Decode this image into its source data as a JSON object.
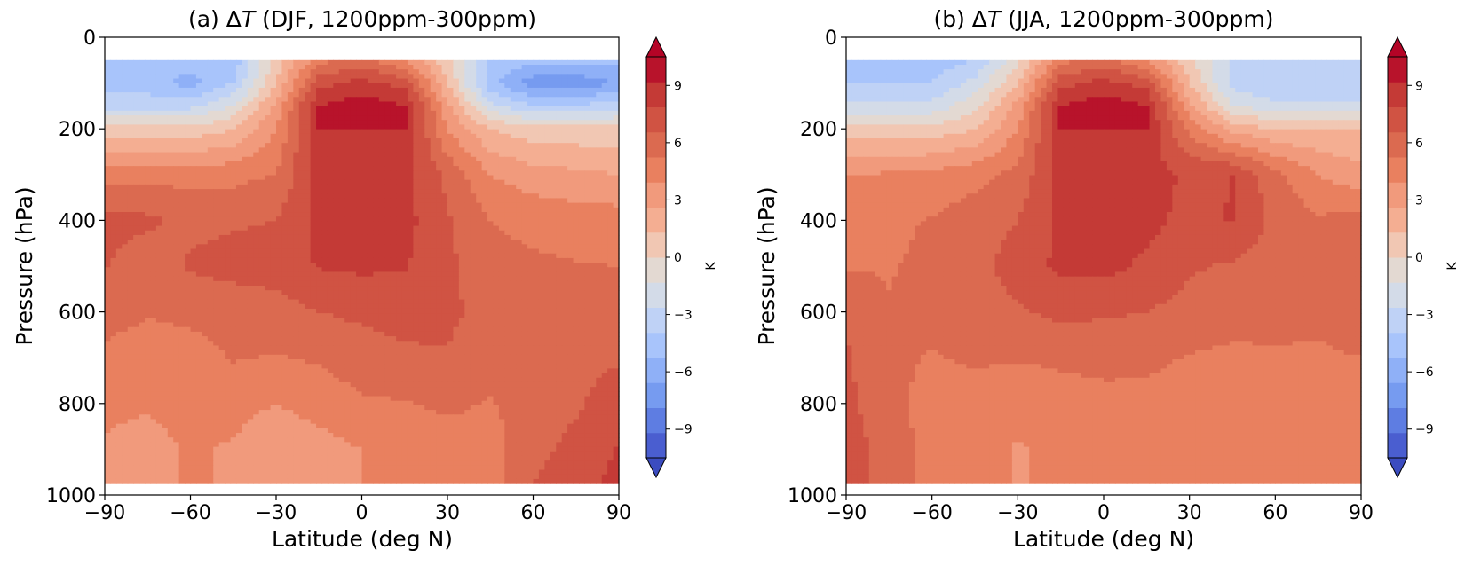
{
  "colors": {
    "cmap": [
      "#4a5ed0",
      "#5e7de2",
      "#769bf0",
      "#8fb0f7",
      "#a8c4fb",
      "#bfd2f6",
      "#d3dbe8",
      "#e3d9d2",
      "#f1c7b3",
      "#f4ae92",
      "#f19a7c",
      "#e9805f",
      "#db6a50",
      "#d05343",
      "#c43a36",
      "#b8132b"
    ],
    "under": "#3b4cc0",
    "over": "#b40426"
  },
  "chart_data": [
    {
      "type": "heatmap",
      "title_prefix": "(a) Δ",
      "title_var": "T",
      "title_suffix": " (DJF, 1200ppm-300ppm)",
      "xlabel": "Latitude (deg N)",
      "ylabel": "Pressure (hPa)",
      "xlim": [
        -90,
        90
      ],
      "ylim": [
        1000,
        0
      ],
      "y_inverted": true,
      "xticks": [
        -90,
        -60,
        -30,
        0,
        30,
        60,
        90
      ],
      "xtick_labels": [
        "−90",
        "−60",
        "−30",
        "0",
        "30",
        "60",
        "90"
      ],
      "yticks": [
        0,
        200,
        400,
        600,
        800,
        1000
      ],
      "ytick_labels": [
        "0",
        "200",
        "400",
        "600",
        "800",
        "1000"
      ],
      "colorbar": {
        "label": "K",
        "range": [
          -10.5,
          10.5
        ],
        "levels_step": 1.5,
        "ticks": [
          9,
          6,
          3,
          0,
          -3,
          -6,
          -9
        ],
        "tick_labels": [
          "9",
          "6",
          "3",
          "0",
          "−3",
          "−6",
          "−9"
        ],
        "extend": "both"
      },
      "profiles": {
        "lat": [
          -90,
          -75,
          -60,
          -45,
          -30,
          -15,
          0,
          15,
          30,
          45,
          60,
          75,
          90
        ],
        "p": [
          50,
          100,
          150,
          200,
          300,
          400,
          500,
          600,
          700,
          800,
          900,
          975
        ],
        "values": [
          [
            -4,
            -4,
            -4,
            -4,
            2,
            7,
            8,
            6,
            2,
            -3,
            -4,
            -4,
            -4
          ],
          [
            -4,
            -4,
            -5,
            -3,
            3,
            10,
            11,
            10,
            3,
            -4,
            -7,
            -7,
            -6
          ],
          [
            -2,
            -2,
            -2,
            0,
            5,
            12,
            13,
            12,
            5,
            -1,
            -3,
            -3,
            -2
          ],
          [
            2,
            2,
            2,
            3,
            6,
            12,
            12,
            12,
            6,
            3,
            2,
            2,
            2
          ],
          [
            6.8,
            7,
            7,
            7,
            7.6,
            11,
            11,
            11,
            8.6,
            6,
            5.2,
            4.8,
            4.5
          ],
          [
            9.6,
            9.3,
            8.6,
            8.8,
            9,
            11,
            11,
            11,
            9.2,
            7.5,
            7,
            6.8,
            6.7
          ],
          [
            9.1,
            8,
            9.2,
            9.6,
            9.7,
            10.6,
            10.8,
            10.6,
            9.3,
            8.1,
            7.8,
            7.6,
            7.5
          ],
          [
            8,
            7.6,
            7.8,
            8,
            8.4,
            9,
            9.3,
            9.6,
            9.3,
            8.5,
            8.3,
            8.2,
            8.1
          ],
          [
            7.2,
            6.9,
            7,
            7.6,
            7.4,
            7.7,
            8.3,
            8.7,
            8.9,
            8.2,
            8.4,
            8.6,
            8.8
          ],
          [
            6.4,
            6.2,
            6.8,
            6.6,
            6.0,
            6.6,
            7.3,
            7.4,
            7.8,
            7.4,
            8.3,
            8.8,
            9.8
          ],
          [
            5.8,
            5.3,
            6.2,
            5.8,
            4.8,
            5.4,
            6.0,
            6.2,
            6.8,
            6.8,
            8.6,
            9.4,
            10.6
          ],
          [
            5.8,
            5.3,
            6.2,
            5.8,
            4.8,
            5.4,
            6.0,
            6.2,
            6.8,
            6.8,
            9.0,
            9.8,
            11
          ]
        ]
      }
    },
    {
      "type": "heatmap",
      "title_prefix": "(b) Δ",
      "title_var": "T",
      "title_suffix": " (JJA, 1200ppm-300ppm)",
      "xlabel": "Latitude (deg N)",
      "ylabel": "Pressure (hPa)",
      "xlim": [
        -90,
        90
      ],
      "ylim": [
        1000,
        0
      ],
      "y_inverted": true,
      "xticks": [
        -90,
        -60,
        -30,
        0,
        30,
        60,
        90
      ],
      "xtick_labels": [
        "−90",
        "−60",
        "−30",
        "0",
        "30",
        "60",
        "90"
      ],
      "yticks": [
        0,
        200,
        400,
        600,
        800,
        1000
      ],
      "ytick_labels": [
        "0",
        "200",
        "400",
        "600",
        "800",
        "1000"
      ],
      "colorbar": {
        "label": "K",
        "range": [
          -10.5,
          10.5
        ],
        "levels_step": 1.5,
        "ticks": [
          9,
          6,
          3,
          0,
          -3,
          -6,
          -9
        ],
        "tick_labels": [
          "9",
          "6",
          "3",
          "0",
          "−3",
          "−6",
          "−9"
        ],
        "extend": "both"
      },
      "profiles": {
        "lat": [
          -90,
          -75,
          -60,
          -45,
          -30,
          -15,
          0,
          15,
          30,
          45,
          60,
          75,
          90
        ],
        "p": [
          50,
          100,
          150,
          200,
          300,
          400,
          500,
          600,
          700,
          800,
          900,
          975
        ],
        "values": [
          [
            -4,
            -4,
            -4,
            -3,
            1,
            7,
            8,
            6,
            2,
            -2,
            -2,
            -2,
            -2
          ],
          [
            -3,
            -3,
            -3,
            -1,
            3,
            10,
            11,
            10,
            3,
            -2,
            -3,
            -3,
            -3
          ],
          [
            -1,
            -1,
            -1,
            1,
            5,
            12,
            13,
            12,
            5,
            0,
            -1,
            -1,
            -1
          ],
          [
            2,
            2,
            2,
            3,
            6,
            12,
            12,
            12,
            7,
            4,
            3,
            3,
            3
          ],
          [
            6,
            6.2,
            6.5,
            7,
            8,
            11,
            11,
            11,
            10.3,
            10.5,
            8,
            6,
            5
          ],
          [
            7,
            7.2,
            7.6,
            8.3,
            9,
            11,
            11,
            11,
            10,
            10.6,
            8.6,
            7.7,
            8
          ],
          [
            7.4,
            7.4,
            7.8,
            8.5,
            9.7,
            10.8,
            11,
            10.2,
            9.2,
            8.8,
            8.2,
            8,
            8.8
          ],
          [
            8.7,
            7.6,
            7.8,
            8.3,
            8.8,
            9.4,
            9.2,
            9,
            8.5,
            8.1,
            8,
            7.8,
            8.2
          ],
          [
            9.2,
            7.8,
            7.4,
            7.7,
            7.6,
            7.8,
            7.9,
            7.9,
            7.4,
            7.2,
            7.3,
            7.3,
            7.5
          ],
          [
            9.4,
            7.8,
            7.1,
            6.9,
            6.4,
            6.8,
            7.1,
            7,
            6.6,
            6.6,
            6.9,
            7.2,
            7.4
          ],
          [
            9.9,
            8.2,
            7.0,
            6.4,
            5.9,
            6.3,
            6.6,
            6.6,
            6.0,
            6.4,
            6.8,
            7.2,
            7.3
          ],
          [
            9.9,
            8.2,
            7.0,
            6.4,
            5.9,
            6.3,
            6.6,
            6.6,
            6.0,
            6.4,
            6.8,
            7.2,
            7.3
          ]
        ]
      }
    }
  ]
}
